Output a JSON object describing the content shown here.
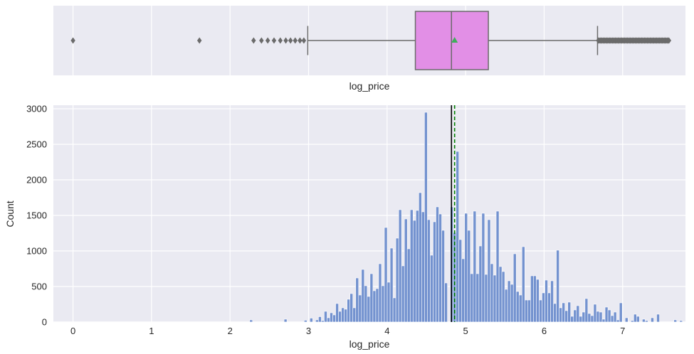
{
  "chart_data": [
    {
      "type": "boxplot",
      "xlabel": "log_price",
      "box": {
        "q1": 4.36,
        "median": 4.82,
        "q3": 5.29,
        "mean": 4.86,
        "whisker_low": 2.99,
        "whisker_high": 6.68
      },
      "outliers_low": [
        0.0,
        1.61,
        2.3,
        2.4,
        2.48,
        2.56,
        2.64,
        2.71,
        2.77,
        2.83,
        2.89,
        2.94
      ],
      "outliers_high_range": [
        6.69,
        7.6
      ],
      "colors": {
        "box": "#e28fe6",
        "edge": "#6b6b6b",
        "mean_marker": "#3fae5a",
        "background": "#eaeaf2"
      }
    },
    {
      "type": "histogram",
      "xlabel": "log_price",
      "ylabel": "Count",
      "xlim": [
        -0.25,
        7.8
      ],
      "ylim": [
        0,
        3050
      ],
      "xticks": [
        0,
        1,
        2,
        3,
        4,
        5,
        6,
        7
      ],
      "yticks": [
        0,
        500,
        1000,
        1500,
        2000,
        2500,
        3000
      ],
      "bin_start": 2.25,
      "bin_width": 0.0365,
      "counts": [
        30,
        0,
        0,
        0,
        0,
        0,
        0,
        0,
        0,
        0,
        0,
        0,
        40,
        0,
        0,
        0,
        0,
        0,
        0,
        25,
        0,
        55,
        0,
        30,
        75,
        20,
        150,
        60,
        130,
        100,
        260,
        150,
        200,
        180,
        320,
        400,
        200,
        620,
        380,
        740,
        510,
        360,
        680,
        440,
        470,
        820,
        510,
        1330,
        560,
        1040,
        340,
        1180,
        1580,
        790,
        1450,
        1030,
        1580,
        1430,
        1570,
        1820,
        1550,
        2950,
        1440,
        940,
        1410,
        1620,
        1520,
        1290,
        550,
        0,
        1620,
        1260,
        2400,
        1160,
        890,
        1530,
        1290,
        680,
        1560,
        680,
        1070,
        1530,
        670,
        1440,
        820,
        660,
        1560,
        780,
        710,
        460,
        580,
        530,
        960,
        430,
        380,
        1060,
        310,
        310,
        650,
        650,
        600,
        310,
        410,
        590,
        410,
        580,
        260,
        1010,
        200,
        270,
        160,
        280,
        80,
        170,
        230,
        80,
        140,
        330,
        120,
        90,
        250,
        150,
        140,
        40,
        210,
        170,
        90,
        140,
        30,
        270,
        0,
        60,
        0,
        20,
        110,
        80,
        0,
        40,
        20,
        0,
        60,
        0,
        110,
        0,
        0,
        0,
        0,
        0,
        30,
        0,
        20
      ],
      "median": 4.82,
      "mean": 4.86,
      "colors": {
        "bar": "#7392cf",
        "bar_edge": "#ffffff",
        "median_line": "#000000",
        "mean_line": "#008000",
        "background": "#eaeaf2",
        "grid": "#ffffff"
      }
    }
  ]
}
